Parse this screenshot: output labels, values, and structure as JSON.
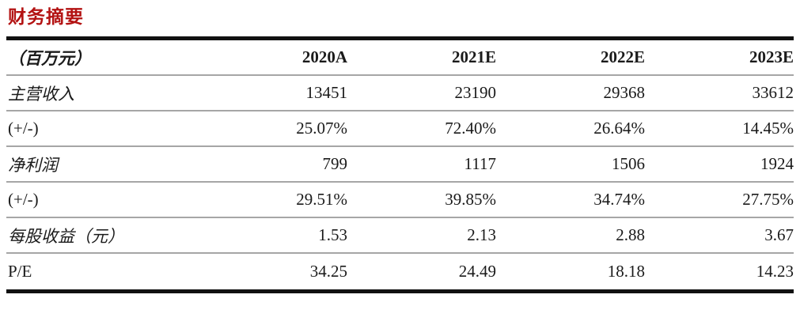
{
  "title": "财务摘要",
  "colors": {
    "title_red": "#b31212",
    "rule_dark": "#111111",
    "rule_light": "#a6a6a6"
  },
  "table": {
    "header": {
      "unit": "（百万元）",
      "col1": "2020A",
      "col2": "2021E",
      "col3": "2022E",
      "col4": "2023E"
    },
    "rows": [
      {
        "label": "主营收入",
        "values": [
          "13451",
          "23190",
          "29368",
          "33612"
        ]
      },
      {
        "label": "(+/-)",
        "values": [
          "25.07%",
          "72.40%",
          "26.64%",
          "14.45%"
        ]
      },
      {
        "label": "净利润",
        "values": [
          "799",
          "1117",
          "1506",
          "1924"
        ]
      },
      {
        "label": "(+/-)",
        "values": [
          "29.51%",
          "39.85%",
          "34.74%",
          "27.75%"
        ]
      },
      {
        "label": "每股收益（元）",
        "values": [
          "1.53",
          "2.13",
          "2.88",
          "3.67"
        ]
      },
      {
        "label": "P/E",
        "values": [
          "34.25",
          "24.49",
          "18.18",
          "14.23"
        ]
      }
    ]
  }
}
